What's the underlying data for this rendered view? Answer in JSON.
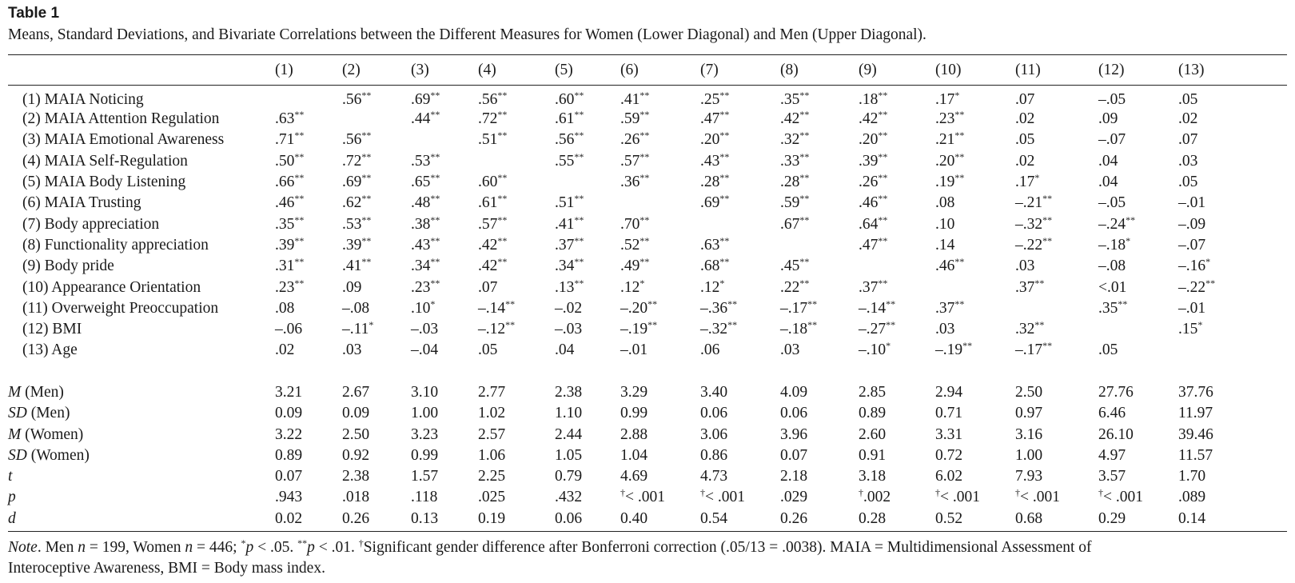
{
  "table_label": "Table 1",
  "caption": "Means, Standard Deviations, and Bivariate Correlations between the Different Measures for Women (Lower Diagonal) and Men (Upper Diagonal).",
  "columns": [
    "(1)",
    "(2)",
    "(3)",
    "(4)",
    "(5)",
    "(6)",
    "(7)",
    "(8)",
    "(9)",
    "(10)",
    "(11)",
    "(12)",
    "(13)"
  ],
  "correlation_rows": [
    {
      "label": "(1) MAIA Noticing",
      "cells": [
        "",
        ".56**",
        ".69**",
        ".56**",
        ".60**",
        ".41**",
        ".25**",
        ".35**",
        ".18**",
        ".17*",
        ".07",
        "–.05",
        ".05"
      ]
    },
    {
      "label": "(2) MAIA Attention Regulation",
      "cells": [
        ".63**",
        "",
        ".44**",
        ".72**",
        ".61**",
        ".59**",
        ".47**",
        ".42**",
        ".42**",
        ".23**",
        ".02",
        ".09",
        ".02"
      ]
    },
    {
      "label": "(3) MAIA Emotional Awareness",
      "cells": [
        ".71**",
        ".56**",
        "",
        ".51**",
        ".56**",
        ".26**",
        ".20**",
        ".32**",
        ".20**",
        ".21**",
        ".05",
        "–.07",
        ".07"
      ]
    },
    {
      "label": "(4) MAIA Self-Regulation",
      "cells": [
        ".50**",
        ".72**",
        ".53**",
        "",
        ".55**",
        ".57**",
        ".43**",
        ".33**",
        ".39**",
        ".20**",
        ".02",
        ".04",
        ".03"
      ]
    },
    {
      "label": "(5) MAIA Body Listening",
      "cells": [
        ".66**",
        ".69**",
        ".65**",
        ".60**",
        "",
        ".36**",
        ".28**",
        ".28**",
        ".26**",
        ".19**",
        ".17*",
        ".04",
        ".05"
      ]
    },
    {
      "label": "(6) MAIA Trusting",
      "cells": [
        ".46**",
        ".62**",
        ".48**",
        ".61**",
        ".51**",
        "",
        ".69**",
        ".59**",
        ".46**",
        ".08",
        "–.21**",
        "–.05",
        "–.01"
      ]
    },
    {
      "label": "(7) Body appreciation",
      "cells": [
        ".35**",
        ".53**",
        ".38**",
        ".57**",
        ".41**",
        ".70**",
        "",
        ".67**",
        ".64**",
        ".10",
        "–.32**",
        "–.24**",
        "–.09"
      ]
    },
    {
      "label": "(8) Functionality appreciation",
      "cells": [
        ".39**",
        ".39**",
        ".43**",
        ".42**",
        ".37**",
        ".52**",
        ".63**",
        "",
        ".47**",
        ".14",
        "–.22**",
        "–.18*",
        "–.07"
      ]
    },
    {
      "label": "(9) Body pride",
      "cells": [
        ".31**",
        ".41**",
        ".34**",
        ".42**",
        ".34**",
        ".49**",
        ".68**",
        ".45**",
        "",
        ".46**",
        ".03",
        "–.08",
        "–.16*"
      ]
    },
    {
      "label": "(10) Appearance Orientation",
      "cells": [
        ".23**",
        ".09",
        ".23**",
        ".07",
        ".13**",
        ".12*",
        ".12*",
        ".22**",
        ".37**",
        "",
        ".37**",
        "<.01",
        "–.22**"
      ]
    },
    {
      "label": "(11) Overweight Preoccupation",
      "cells": [
        ".08",
        "–.08",
        ".10*",
        "–.14**",
        "–.02",
        "–.20**",
        "–.36**",
        "–.17**",
        "–.14**",
        ".37**",
        "",
        ".35**",
        "–.01"
      ]
    },
    {
      "label": "(12) BMI",
      "cells": [
        "–.06",
        "–.11*",
        "–.03",
        "–.12**",
        "–.03",
        "–.19**",
        "–.32**",
        "–.18**",
        "–.27**",
        ".03",
        ".32**",
        "",
        ".15*"
      ]
    },
    {
      "label": "(13) Age",
      "cells": [
        ".02",
        ".03",
        "–.04",
        ".05",
        ".04",
        "–.01",
        ".06",
        ".03",
        "–.10*",
        "–.19**",
        "–.17**",
        ".05",
        ""
      ]
    }
  ],
  "stat_rows": [
    {
      "label_main": "M",
      "label_rest": " (Men)",
      "cells": [
        "3.21",
        "2.67",
        "3.10",
        "2.77",
        "2.38",
        "3.29",
        "3.40",
        "4.09",
        "2.85",
        "2.94",
        "2.50",
        "27.76",
        "37.76"
      ]
    },
    {
      "label_main": "SD",
      "label_rest": " (Men)",
      "cells": [
        "0.09",
        "0.09",
        "1.00",
        "1.02",
        "1.10",
        "0.99",
        "0.06",
        "0.06",
        "0.89",
        "0.71",
        "0.97",
        "6.46",
        "11.97"
      ]
    },
    {
      "label_main": "M",
      "label_rest": " (Women)",
      "cells": [
        "3.22",
        "2.50",
        "3.23",
        "2.57",
        "2.44",
        "2.88",
        "3.06",
        "3.96",
        "2.60",
        "3.31",
        "3.16",
        "26.10",
        "39.46"
      ]
    },
    {
      "label_main": "SD",
      "label_rest": " (Women)",
      "cells": [
        "0.89",
        "0.92",
        "0.99",
        "1.06",
        "1.05",
        "1.04",
        "0.86",
        "0.07",
        "0.91",
        "0.72",
        "1.00",
        "4.97",
        "11.57"
      ]
    },
    {
      "label_main": "t",
      "label_rest": "",
      "cells": [
        "0.07",
        "2.38",
        "1.57",
        "2.25",
        "0.79",
        "4.69",
        "4.73",
        "2.18",
        "3.18",
        "6.02",
        "7.93",
        "3.57",
        "1.70"
      ]
    },
    {
      "label_main": "p",
      "label_rest": "",
      "cells": [
        ".943",
        ".018",
        ".118",
        ".025",
        ".432",
        "†< .001",
        "†< .001",
        ".029",
        "†.002",
        "†< .001",
        "†< .001",
        "†< .001",
        ".089"
      ]
    },
    {
      "label_main": "d",
      "label_rest": "",
      "cells": [
        "0.02",
        "0.26",
        "0.13",
        "0.19",
        "0.06",
        "0.40",
        "0.54",
        "0.26",
        "0.28",
        "0.52",
        "0.68",
        "0.29",
        "0.14"
      ]
    }
  ],
  "note": {
    "line1": "Note. Men n = 199, Women n = 446; *p < .05. **p < .01. †Significant gender difference after Bonferroni correction (.05/13 = .0038). MAIA = Multidimensional Assessment of",
    "line2": "Interoceptive Awareness, BMI = Body mass index."
  }
}
